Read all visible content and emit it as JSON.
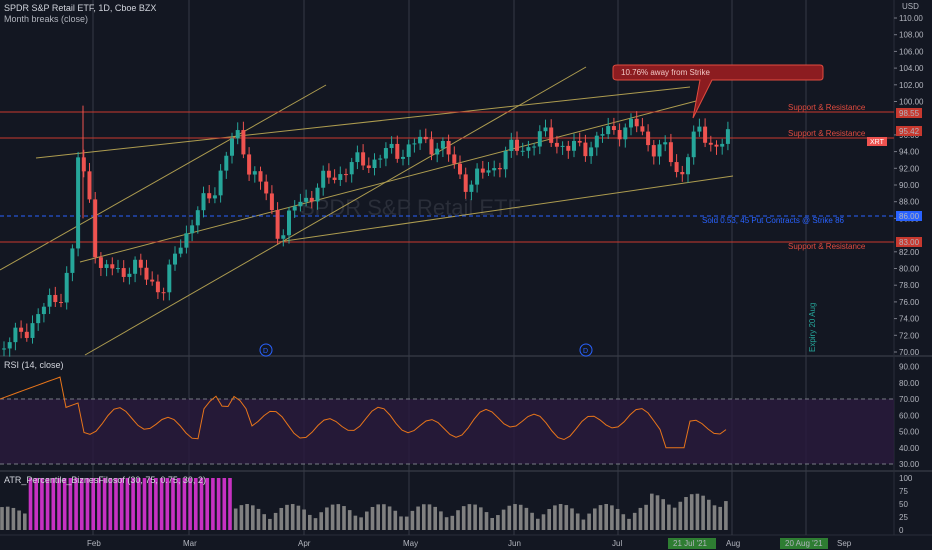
{
  "header": {
    "symbol_line": "SPDR S&P Retail ETF, 1D, Cboe BZX",
    "indicator_line": "Month breaks (close)"
  },
  "price_axis": {
    "currency": "USD",
    "ticks": [
      "110.00",
      "108.00",
      "106.00",
      "104.00",
      "102.00",
      "100.00",
      "96.00",
      "94.00",
      "92.00",
      "90.00",
      "88.00",
      "86.00",
      "82.00",
      "80.00",
      "78.00",
      "76.00",
      "74.00",
      "72.00",
      "70.00"
    ]
  },
  "price_tags": {
    "upper_sr": "98.55",
    "last": "95.42",
    "symbol": "XRT",
    "strike": "86.00",
    "lower_sr": "83.00"
  },
  "annotations": {
    "callout": "10.76% away from Strike",
    "sr_label": "Support & Resistance",
    "strike_label": "Sold 0.53, 45 Put Contracts @ Strike 86",
    "expiry_label": "Expiry 20 Aug",
    "watermark": "SPDR S&P Retail ETF",
    "dividend_marker": "D"
  },
  "rsi": {
    "title": "RSI (14, close)",
    "ticks": [
      "90.00",
      "80.00",
      "70.00",
      "60.00",
      "50.00",
      "40.00",
      "30.00"
    ]
  },
  "atr": {
    "title": "ATR_Percentile_BiznesFilosof (30, 75, 0.75, 30, 2)",
    "ticks": [
      "100",
      "75",
      "50",
      "25",
      "0"
    ]
  },
  "time_axis": {
    "labels": [
      "Feb",
      "Mar",
      "Apr",
      "May",
      "Jun",
      "Jul",
      "Aug",
      "Sep"
    ],
    "highlight_1": "21 Jul '21",
    "highlight_2": "20 Aug '21"
  },
  "colors": {
    "background": "#131722",
    "up_candle": "#26a69a",
    "down_candle": "#ef5350",
    "sr_line": "#c8392f",
    "channel_line": "#c9b458",
    "strike_line": "#2962ff",
    "rsi_line": "#e8751a",
    "atr_high": "#c731c2",
    "atr_low": "#808080",
    "highlight": "#2e7d32"
  },
  "chart_data": {
    "type": "candlestick",
    "symbol": "XRT",
    "timeframe": "1D",
    "x_range": [
      "2021-01-11",
      "2021-09-10"
    ],
    "y_range": [
      70,
      111
    ],
    "levels": {
      "support_resistance": [
        98.55,
        95.42,
        83.0
      ],
      "strike": 86.0,
      "last_close": 95.42
    },
    "rsi_range": [
      25,
      95
    ],
    "rsi_levels": [
      70,
      30
    ],
    "atr_range": [
      0,
      100
    ]
  }
}
